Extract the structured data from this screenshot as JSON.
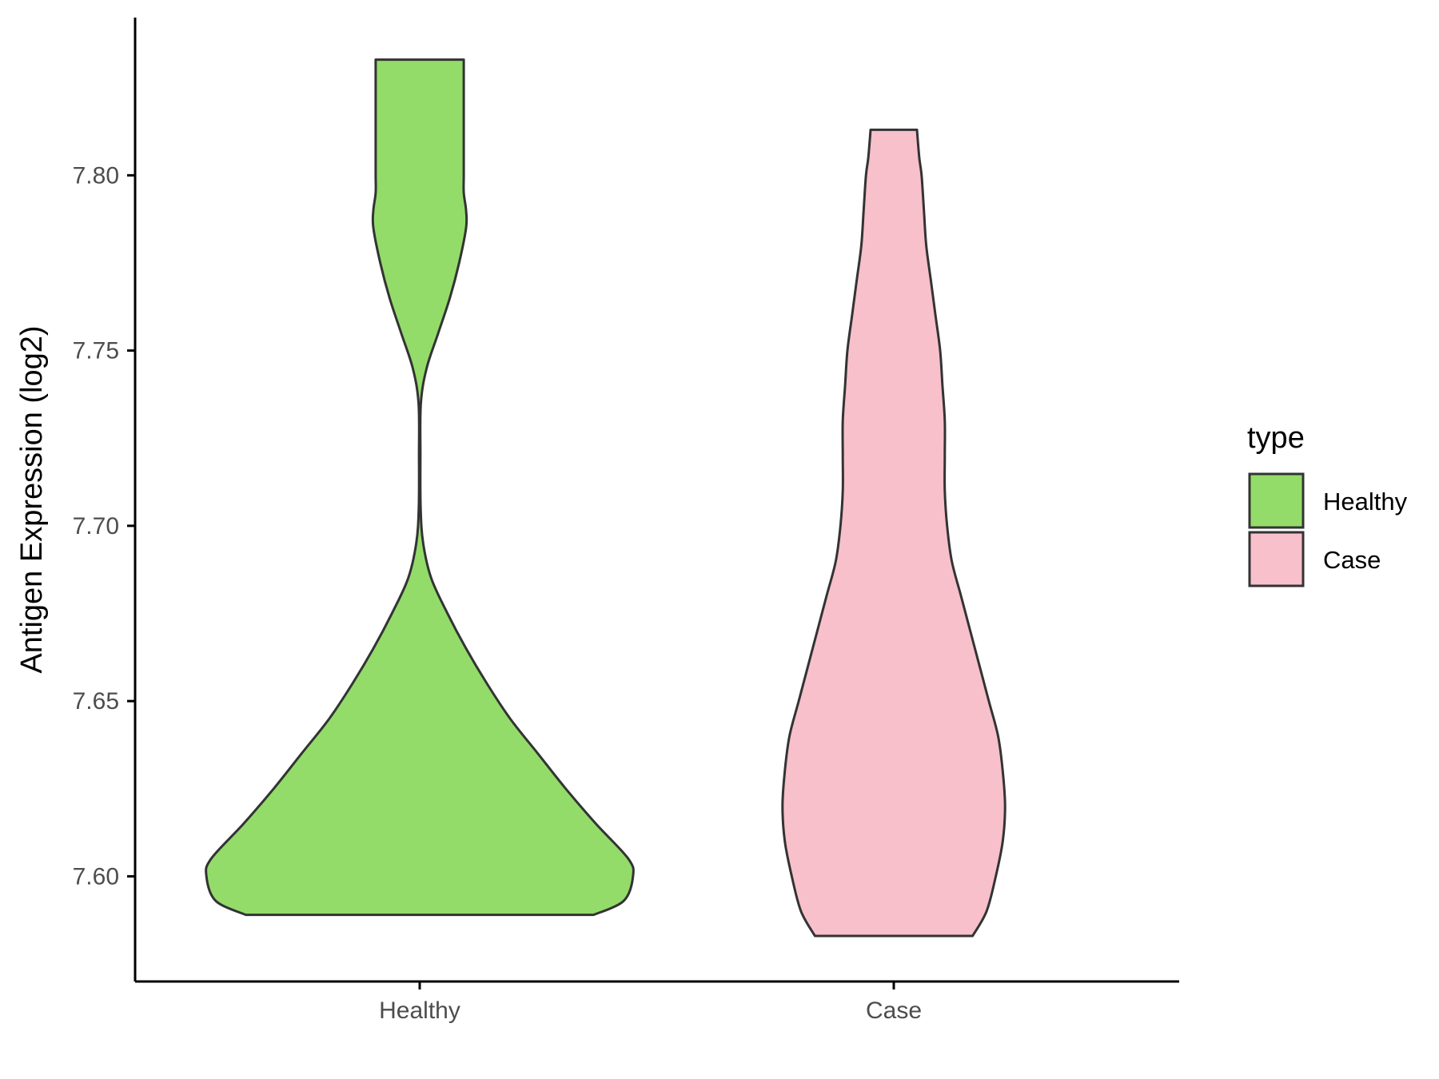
{
  "chart_data": {
    "type": "violin",
    "xlabel": "",
    "ylabel": "Antigen Expression (log2)",
    "ylim": [
      7.57,
      7.845
    ],
    "yticks": [
      "7.60",
      "7.65",
      "7.70",
      "7.75",
      "7.80"
    ],
    "categories": [
      "Healthy",
      "Case"
    ],
    "grid": false,
    "legend": {
      "title": "type",
      "position": "right",
      "entries": [
        {
          "label": "Healthy",
          "color": "#93DC6A"
        },
        {
          "label": "Case",
          "color": "#F7C0CB"
        }
      ]
    },
    "series": [
      {
        "name": "Healthy",
        "color": "#93DC6A",
        "min": 7.589,
        "max": 7.833,
        "density_profile": [
          [
            7.589,
            0.75
          ],
          [
            7.593,
            0.88
          ],
          [
            7.6,
            0.92
          ],
          [
            7.605,
            0.9
          ],
          [
            7.615,
            0.76
          ],
          [
            7.625,
            0.63
          ],
          [
            7.635,
            0.51
          ],
          [
            7.645,
            0.39
          ],
          [
            7.655,
            0.29
          ],
          [
            7.665,
            0.2
          ],
          [
            7.675,
            0.12
          ],
          [
            7.685,
            0.05
          ],
          [
            7.695,
            0.015
          ],
          [
            7.705,
            0.004
          ],
          [
            7.72,
            0.003
          ],
          [
            7.735,
            0.005
          ],
          [
            7.745,
            0.03
          ],
          [
            7.755,
            0.08
          ],
          [
            7.765,
            0.13
          ],
          [
            7.775,
            0.17
          ],
          [
            7.785,
            0.2
          ],
          [
            7.79,
            0.2
          ],
          [
            7.795,
            0.19
          ],
          [
            7.8,
            0.19
          ],
          [
            7.807,
            0.19
          ],
          [
            7.812,
            0.19
          ],
          [
            7.818,
            0.19
          ],
          [
            7.825,
            0.19
          ],
          [
            7.833,
            0.19
          ]
        ]
      },
      {
        "name": "Case",
        "color": "#F7C0CB",
        "min": 7.583,
        "max": 7.813,
        "density_profile": [
          [
            7.583,
            0.34
          ],
          [
            7.59,
            0.4
          ],
          [
            7.6,
            0.44
          ],
          [
            7.61,
            0.47
          ],
          [
            7.62,
            0.48
          ],
          [
            7.63,
            0.47
          ],
          [
            7.64,
            0.45
          ],
          [
            7.65,
            0.41
          ],
          [
            7.66,
            0.37
          ],
          [
            7.67,
            0.33
          ],
          [
            7.68,
            0.29
          ],
          [
            7.69,
            0.25
          ],
          [
            7.7,
            0.23
          ],
          [
            7.71,
            0.22
          ],
          [
            7.72,
            0.22
          ],
          [
            7.73,
            0.22
          ],
          [
            7.74,
            0.21
          ],
          [
            7.75,
            0.2
          ],
          [
            7.76,
            0.18
          ],
          [
            7.77,
            0.16
          ],
          [
            7.78,
            0.14
          ],
          [
            7.79,
            0.13
          ],
          [
            7.8,
            0.12
          ],
          [
            7.805,
            0.11
          ],
          [
            7.813,
            0.1
          ]
        ]
      }
    ]
  }
}
